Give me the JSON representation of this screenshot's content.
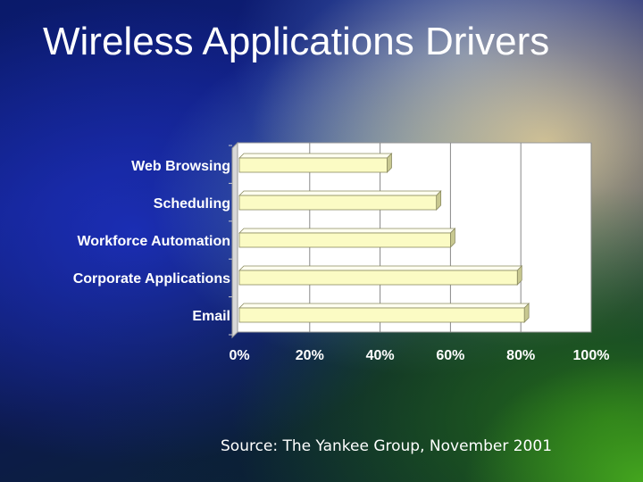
{
  "slide": {
    "title": "Wireless Applications Drivers",
    "source": "Source: The Yankee Group, November 2001"
  },
  "chart_data": {
    "type": "bar",
    "orientation": "horizontal",
    "categories": [
      "Web Browsing",
      "Scheduling",
      "Workforce Automation",
      "Corporate Applications",
      "Email"
    ],
    "values": [
      42,
      56,
      60,
      79,
      81
    ],
    "xlim": [
      0,
      100
    ],
    "ticks": [
      "0%",
      "20%",
      "40%",
      "60%",
      "80%",
      "100%"
    ],
    "grid": true,
    "colors": {
      "bar_front": "#fbfbc4",
      "bar_top": "#fffff0",
      "bar_side": "#c8c890",
      "plot_area": "#ffffff",
      "grid": "#888888"
    }
  }
}
